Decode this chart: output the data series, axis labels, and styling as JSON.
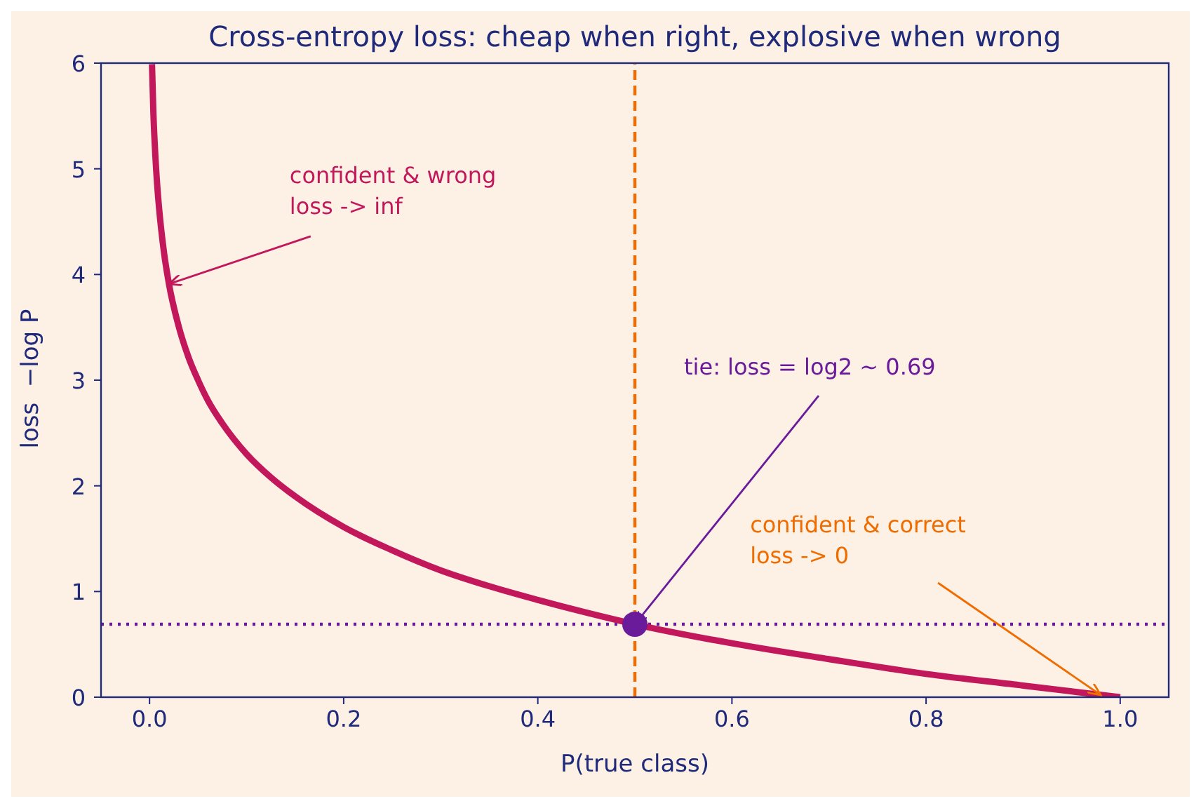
{
  "chart_data": {
    "type": "line",
    "title": "Cross-entropy loss: cheap when right, explosive when wrong",
    "xlabel": "P(true class)",
    "ylabel": "loss  −log P",
    "series": [
      {
        "color": "#c2185b",
        "x": [
          0.0025,
          0.004,
          0.006,
          0.008,
          0.01,
          0.015,
          0.02,
          0.03,
          0.04,
          0.05,
          0.06,
          0.075,
          0.1,
          0.125,
          0.15,
          0.2,
          0.25,
          0.3,
          0.35,
          0.4,
          0.45,
          0.5,
          0.6,
          0.7,
          0.8,
          0.9,
          1.0
        ],
        "values": [
          5.99,
          5.52,
          5.12,
          4.83,
          4.61,
          4.2,
          3.91,
          3.51,
          3.22,
          3.0,
          2.81,
          2.59,
          2.3,
          2.08,
          1.9,
          1.61,
          1.39,
          1.2,
          1.05,
          0.92,
          0.8,
          0.69,
          0.51,
          0.36,
          0.22,
          0.11,
          0
        ],
        "marker": "none",
        "line_style": "solid"
      },
      {
        "type": "scatter",
        "color": "#6a1b9a",
        "x": [
          0.5
        ],
        "values": [
          0.69
        ],
        "marker": "circle"
      }
    ],
    "ref_lines": [
      {
        "axis": "x",
        "value": 0.5,
        "color": "#ef6c00",
        "line_style": "dashed"
      },
      {
        "axis": "y",
        "value": 0.69,
        "color": "#6a1b9a",
        "line_style": "dotted"
      }
    ],
    "annotations": [
      {
        "text": "confident & wrong\nloss -> inf",
        "x": 0.02,
        "y": 3.91
      },
      {
        "text": "tie: loss = log2 ~ 0.69",
        "x": 0.5,
        "y": 0.69
      },
      {
        "text": "confident & correct\nloss -> 0",
        "x": 0.98,
        "y": 0.02
      }
    ],
    "xlim": [
      -0.05,
      1.05
    ],
    "xticks": [
      {
        "value": 0,
        "label": "0.0"
      },
      0.2,
      0.4,
      0.6,
      0.8,
      {
        "value": 1,
        "label": "1.0"
      }
    ],
    "ylim": [
      0,
      6
    ],
    "yticks": [
      0,
      1,
      2,
      3,
      4,
      5,
      6
    ],
    "grid": false,
    "legend": false
  }
}
